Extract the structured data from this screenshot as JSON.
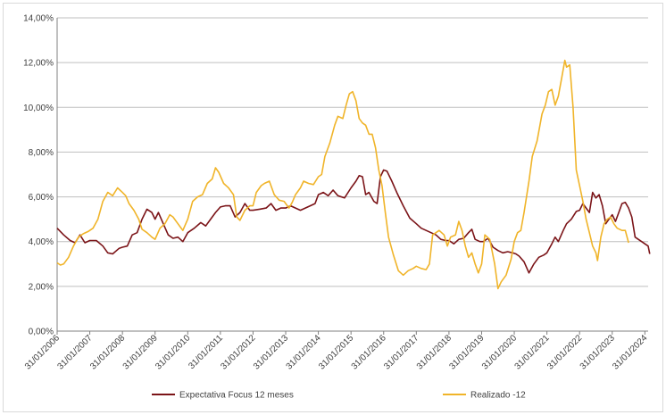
{
  "chart_data": {
    "type": "line",
    "y_ticks": [
      "0,00%",
      "2,00%",
      "4,00%",
      "6,00%",
      "8,00%",
      "10,00%",
      "12,00%",
      "14,00%"
    ],
    "x_ticks": [
      "31/01/2006",
      "31/01/2007",
      "31/01/2008",
      "31/01/2009",
      "31/01/2010",
      "31/01/2011",
      "31/01/2012",
      "31/01/2013",
      "31/01/2014",
      "31/01/2015",
      "31/01/2016",
      "31/01/2017",
      "31/01/2018",
      "31/01/2019",
      "31/01/2020",
      "31/01/2021",
      "31/01/2022",
      "31/01/2023",
      "31/01/2024"
    ],
    "x_range": [
      2006.0,
      2024.1
    ],
    "ylim": [
      0,
      14
    ],
    "grid": true,
    "legend_position": "bottom",
    "series": [
      {
        "name": "Expectativa Focus 12 meses",
        "color": "#7b1418",
        "points": [
          [
            2006.0,
            4.6
          ],
          [
            2006.2,
            4.3
          ],
          [
            2006.4,
            4.05
          ],
          [
            2006.55,
            3.95
          ],
          [
            2006.7,
            4.3
          ],
          [
            2006.85,
            3.95
          ],
          [
            2007.0,
            4.05
          ],
          [
            2007.2,
            4.05
          ],
          [
            2007.4,
            3.8
          ],
          [
            2007.55,
            3.5
          ],
          [
            2007.7,
            3.45
          ],
          [
            2007.9,
            3.7
          ],
          [
            2008.0,
            3.75
          ],
          [
            2008.15,
            3.8
          ],
          [
            2008.3,
            4.3
          ],
          [
            2008.45,
            4.4
          ],
          [
            2008.6,
            5.0
          ],
          [
            2008.75,
            5.45
          ],
          [
            2008.9,
            5.3
          ],
          [
            2009.0,
            5.0
          ],
          [
            2009.1,
            5.3
          ],
          [
            2009.25,
            4.8
          ],
          [
            2009.4,
            4.3
          ],
          [
            2009.55,
            4.15
          ],
          [
            2009.7,
            4.2
          ],
          [
            2009.85,
            4.0
          ],
          [
            2010.0,
            4.4
          ],
          [
            2010.2,
            4.6
          ],
          [
            2010.4,
            4.85
          ],
          [
            2010.55,
            4.7
          ],
          [
            2010.7,
            5.0
          ],
          [
            2010.85,
            5.3
          ],
          [
            2011.0,
            5.55
          ],
          [
            2011.15,
            5.6
          ],
          [
            2011.3,
            5.6
          ],
          [
            2011.45,
            5.1
          ],
          [
            2011.6,
            5.3
          ],
          [
            2011.75,
            5.7
          ],
          [
            2011.9,
            5.4
          ],
          [
            2012.0,
            5.4
          ],
          [
            2012.2,
            5.45
          ],
          [
            2012.4,
            5.5
          ],
          [
            2012.55,
            5.7
          ],
          [
            2012.7,
            5.4
          ],
          [
            2012.85,
            5.5
          ],
          [
            2013.0,
            5.5
          ],
          [
            2013.15,
            5.6
          ],
          [
            2013.3,
            5.5
          ],
          [
            2013.45,
            5.4
          ],
          [
            2013.6,
            5.5
          ],
          [
            2013.75,
            5.6
          ],
          [
            2013.9,
            5.7
          ],
          [
            2014.0,
            6.1
          ],
          [
            2014.15,
            6.2
          ],
          [
            2014.3,
            6.05
          ],
          [
            2014.45,
            6.3
          ],
          [
            2014.6,
            6.05
          ],
          [
            2014.8,
            5.95
          ],
          [
            2015.0,
            6.4
          ],
          [
            2015.15,
            6.7
          ],
          [
            2015.25,
            6.95
          ],
          [
            2015.35,
            6.9
          ],
          [
            2015.45,
            6.1
          ],
          [
            2015.55,
            6.2
          ],
          [
            2015.7,
            5.8
          ],
          [
            2015.8,
            5.7
          ],
          [
            2015.9,
            6.9
          ],
          [
            2016.0,
            7.2
          ],
          [
            2016.1,
            7.15
          ],
          [
            2016.25,
            6.7
          ],
          [
            2016.4,
            6.2
          ],
          [
            2016.6,
            5.6
          ],
          [
            2016.8,
            5.05
          ],
          [
            2017.0,
            4.8
          ],
          [
            2017.15,
            4.6
          ],
          [
            2017.3,
            4.5
          ],
          [
            2017.45,
            4.4
          ],
          [
            2017.6,
            4.3
          ],
          [
            2017.75,
            4.1
          ],
          [
            2017.9,
            4.05
          ],
          [
            2018.0,
            4.05
          ],
          [
            2018.15,
            3.9
          ],
          [
            2018.3,
            4.1
          ],
          [
            2018.45,
            4.15
          ],
          [
            2018.6,
            4.4
          ],
          [
            2018.7,
            4.55
          ],
          [
            2018.8,
            4.1
          ],
          [
            2018.95,
            4.0
          ],
          [
            2019.05,
            4.0
          ],
          [
            2019.2,
            4.15
          ],
          [
            2019.35,
            3.75
          ],
          [
            2019.5,
            3.6
          ],
          [
            2019.65,
            3.5
          ],
          [
            2019.8,
            3.55
          ],
          [
            2019.95,
            3.5
          ],
          [
            2020.05,
            3.45
          ],
          [
            2020.15,
            3.35
          ],
          [
            2020.3,
            3.1
          ],
          [
            2020.45,
            2.6
          ],
          [
            2020.6,
            3.0
          ],
          [
            2020.75,
            3.3
          ],
          [
            2020.9,
            3.4
          ],
          [
            2021.0,
            3.5
          ],
          [
            2021.15,
            3.9
          ],
          [
            2021.25,
            4.2
          ],
          [
            2021.35,
            4.0
          ],
          [
            2021.5,
            4.5
          ],
          [
            2021.6,
            4.8
          ],
          [
            2021.75,
            5.0
          ],
          [
            2021.9,
            5.35
          ],
          [
            2022.0,
            5.4
          ],
          [
            2022.1,
            5.7
          ],
          [
            2022.2,
            5.5
          ],
          [
            2022.3,
            5.3
          ],
          [
            2022.4,
            6.2
          ],
          [
            2022.5,
            5.95
          ],
          [
            2022.6,
            6.1
          ],
          [
            2022.7,
            5.6
          ],
          [
            2022.8,
            4.8
          ],
          [
            2022.9,
            5.0
          ],
          [
            2023.0,
            5.2
          ],
          [
            2023.1,
            4.9
          ],
          [
            2023.2,
            5.3
          ],
          [
            2023.3,
            5.7
          ],
          [
            2023.4,
            5.75
          ],
          [
            2023.5,
            5.5
          ],
          [
            2023.6,
            5.1
          ],
          [
            2023.7,
            4.2
          ],
          [
            2023.8,
            4.1
          ],
          [
            2023.9,
            4.0
          ],
          [
            2024.0,
            3.9
          ],
          [
            2024.1,
            3.8
          ],
          [
            2024.15,
            3.45
          ]
        ]
      },
      {
        "name": "Realizado -12",
        "color": "#f0b429",
        "points": [
          [
            2006.0,
            3.05
          ],
          [
            2006.1,
            2.95
          ],
          [
            2006.2,
            3.0
          ],
          [
            2006.35,
            3.3
          ],
          [
            2006.5,
            3.8
          ],
          [
            2006.65,
            4.2
          ],
          [
            2006.8,
            4.35
          ],
          [
            2006.95,
            4.45
          ],
          [
            2007.1,
            4.6
          ],
          [
            2007.25,
            5.0
          ],
          [
            2007.4,
            5.8
          ],
          [
            2007.55,
            6.2
          ],
          [
            2007.7,
            6.05
          ],
          [
            2007.85,
            6.4
          ],
          [
            2008.0,
            6.2
          ],
          [
            2008.1,
            6.05
          ],
          [
            2008.2,
            5.7
          ],
          [
            2008.35,
            5.4
          ],
          [
            2008.5,
            5.0
          ],
          [
            2008.6,
            4.55
          ],
          [
            2008.75,
            4.4
          ],
          [
            2008.9,
            4.2
          ],
          [
            2009.0,
            4.1
          ],
          [
            2009.15,
            4.6
          ],
          [
            2009.3,
            4.8
          ],
          [
            2009.45,
            5.2
          ],
          [
            2009.55,
            5.1
          ],
          [
            2009.7,
            4.8
          ],
          [
            2009.85,
            4.5
          ],
          [
            2010.0,
            5.0
          ],
          [
            2010.15,
            5.8
          ],
          [
            2010.3,
            6.0
          ],
          [
            2010.45,
            6.1
          ],
          [
            2010.6,
            6.6
          ],
          [
            2010.75,
            6.8
          ],
          [
            2010.85,
            7.3
          ],
          [
            2010.95,
            7.1
          ],
          [
            2011.1,
            6.6
          ],
          [
            2011.25,
            6.4
          ],
          [
            2011.4,
            6.1
          ],
          [
            2011.5,
            5.1
          ],
          [
            2011.6,
            4.95
          ],
          [
            2011.75,
            5.4
          ],
          [
            2011.9,
            5.6
          ],
          [
            2012.0,
            5.6
          ],
          [
            2012.1,
            6.2
          ],
          [
            2012.25,
            6.5
          ],
          [
            2012.35,
            6.6
          ],
          [
            2012.5,
            6.7
          ],
          [
            2012.65,
            6.1
          ],
          [
            2012.8,
            5.85
          ],
          [
            2012.95,
            5.8
          ],
          [
            2013.1,
            5.5
          ],
          [
            2013.2,
            5.75
          ],
          [
            2013.3,
            6.1
          ],
          [
            2013.45,
            6.4
          ],
          [
            2013.55,
            6.7
          ],
          [
            2013.7,
            6.6
          ],
          [
            2013.85,
            6.55
          ],
          [
            2014.0,
            6.9
          ],
          [
            2014.1,
            7.0
          ],
          [
            2014.2,
            7.8
          ],
          [
            2014.35,
            8.4
          ],
          [
            2014.5,
            9.2
          ],
          [
            2014.6,
            9.6
          ],
          [
            2014.75,
            9.5
          ],
          [
            2014.85,
            10.1
          ],
          [
            2014.95,
            10.6
          ],
          [
            2015.05,
            10.7
          ],
          [
            2015.15,
            10.3
          ],
          [
            2015.25,
            9.5
          ],
          [
            2015.35,
            9.3
          ],
          [
            2015.45,
            9.2
          ],
          [
            2015.55,
            8.8
          ],
          [
            2015.65,
            8.8
          ],
          [
            2015.75,
            8.2
          ],
          [
            2015.85,
            7.2
          ],
          [
            2015.95,
            6.5
          ],
          [
            2016.05,
            5.3
          ],
          [
            2016.15,
            4.2
          ],
          [
            2016.3,
            3.4
          ],
          [
            2016.45,
            2.7
          ],
          [
            2016.6,
            2.5
          ],
          [
            2016.75,
            2.7
          ],
          [
            2016.9,
            2.8
          ],
          [
            2017.0,
            2.9
          ],
          [
            2017.15,
            2.8
          ],
          [
            2017.3,
            2.75
          ],
          [
            2017.4,
            3.0
          ],
          [
            2017.5,
            4.3
          ],
          [
            2017.6,
            4.4
          ],
          [
            2017.7,
            4.5
          ],
          [
            2017.85,
            4.3
          ],
          [
            2017.95,
            3.8
          ],
          [
            2018.05,
            4.2
          ],
          [
            2018.2,
            4.3
          ],
          [
            2018.3,
            4.9
          ],
          [
            2018.4,
            4.5
          ],
          [
            2018.5,
            3.8
          ],
          [
            2018.6,
            3.3
          ],
          [
            2018.7,
            3.5
          ],
          [
            2018.8,
            3.0
          ],
          [
            2018.9,
            2.6
          ],
          [
            2019.0,
            3.0
          ],
          [
            2019.1,
            4.3
          ],
          [
            2019.25,
            4.1
          ],
          [
            2019.4,
            3.0
          ],
          [
            2019.5,
            1.9
          ],
          [
            2019.6,
            2.2
          ],
          [
            2019.75,
            2.5
          ],
          [
            2019.9,
            3.2
          ],
          [
            2020.0,
            4.0
          ],
          [
            2020.1,
            4.4
          ],
          [
            2020.2,
            4.5
          ],
          [
            2020.3,
            5.3
          ],
          [
            2020.45,
            6.7
          ],
          [
            2020.55,
            7.8
          ],
          [
            2020.7,
            8.5
          ],
          [
            2020.85,
            9.7
          ],
          [
            2020.95,
            10.1
          ],
          [
            2021.05,
            10.7
          ],
          [
            2021.15,
            10.8
          ],
          [
            2021.25,
            10.1
          ],
          [
            2021.35,
            10.5
          ],
          [
            2021.45,
            11.3
          ],
          [
            2021.55,
            12.1
          ],
          [
            2021.6,
            11.8
          ],
          [
            2021.7,
            11.9
          ],
          [
            2021.8,
            10.0
          ],
          [
            2021.9,
            7.2
          ],
          [
            2022.0,
            6.5
          ],
          [
            2022.1,
            5.8
          ],
          [
            2022.2,
            5.0
          ],
          [
            2022.3,
            4.4
          ],
          [
            2022.4,
            3.8
          ],
          [
            2022.5,
            3.5
          ],
          [
            2022.55,
            3.15
          ],
          [
            2022.65,
            4.2
          ],
          [
            2022.75,
            4.8
          ],
          [
            2022.85,
            5.0
          ],
          [
            2022.95,
            5.1
          ],
          [
            2023.05,
            4.8
          ],
          [
            2023.15,
            4.6
          ],
          [
            2023.3,
            4.5
          ],
          [
            2023.4,
            4.5
          ],
          [
            2023.5,
            3.95
          ]
        ]
      }
    ]
  }
}
